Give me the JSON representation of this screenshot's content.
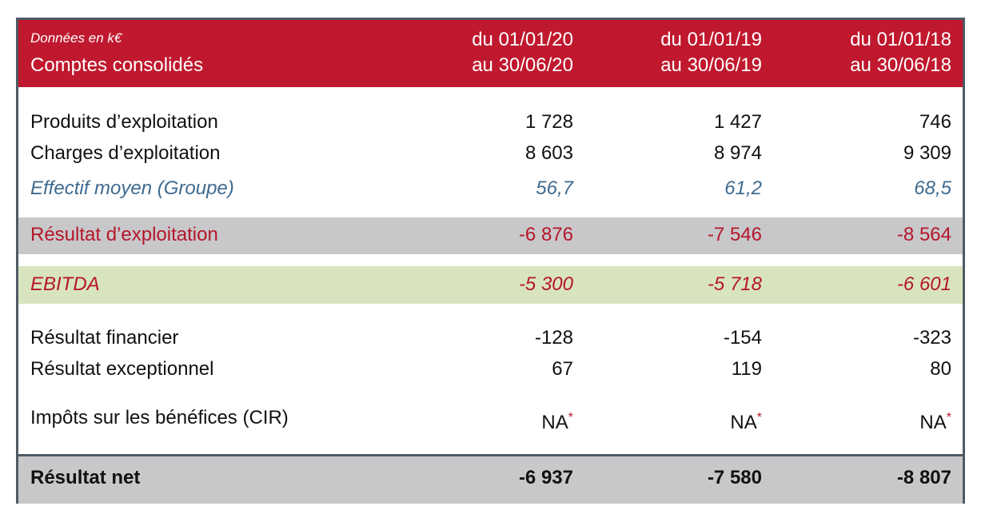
{
  "header": {
    "unit": "Données en k€",
    "title": "Comptes consolidés",
    "periods": [
      [
        "du 01/01/20",
        "au 30/06/20"
      ],
      [
        "du 01/01/19",
        "au 30/06/19"
      ],
      [
        "du 01/01/18",
        "au 30/06/18"
      ]
    ]
  },
  "table": {
    "rows": [
      {
        "label": "Produits d’exploitation",
        "values": [
          "1 728",
          "1 427",
          "746"
        ]
      },
      {
        "label": "Charges d’exploitation",
        "values": [
          "8 603",
          "8 974",
          "9 309"
        ]
      },
      {
        "label": "Effectif moyen (Groupe)",
        "values": [
          "56,7",
          "61,2",
          "68,5"
        ]
      },
      {
        "label": "Résultat d’exploitation",
        "values": [
          "-6 876",
          "-7 546",
          "-8 564"
        ]
      },
      {
        "label": "EBITDA",
        "values": [
          "-5 300",
          "-5 718",
          "-6 601"
        ]
      },
      {
        "label": "Résultat financier",
        "values": [
          "-128",
          "-154",
          "-323"
        ]
      },
      {
        "label": "Résultat exceptionnel",
        "values": [
          "67",
          "119",
          "80"
        ]
      },
      {
        "label": "Impôts sur les bénéfices (CIR)",
        "values": [
          {
            "text": "NA",
            "mark": "*"
          },
          {
            "text": "NA",
            "mark": "*"
          },
          {
            "text": "NA",
            "mark": "*"
          }
        ]
      },
      {
        "label": "Résultat net",
        "values": [
          "-6 937",
          "-7 580",
          "-8 807"
        ]
      }
    ]
  }
}
